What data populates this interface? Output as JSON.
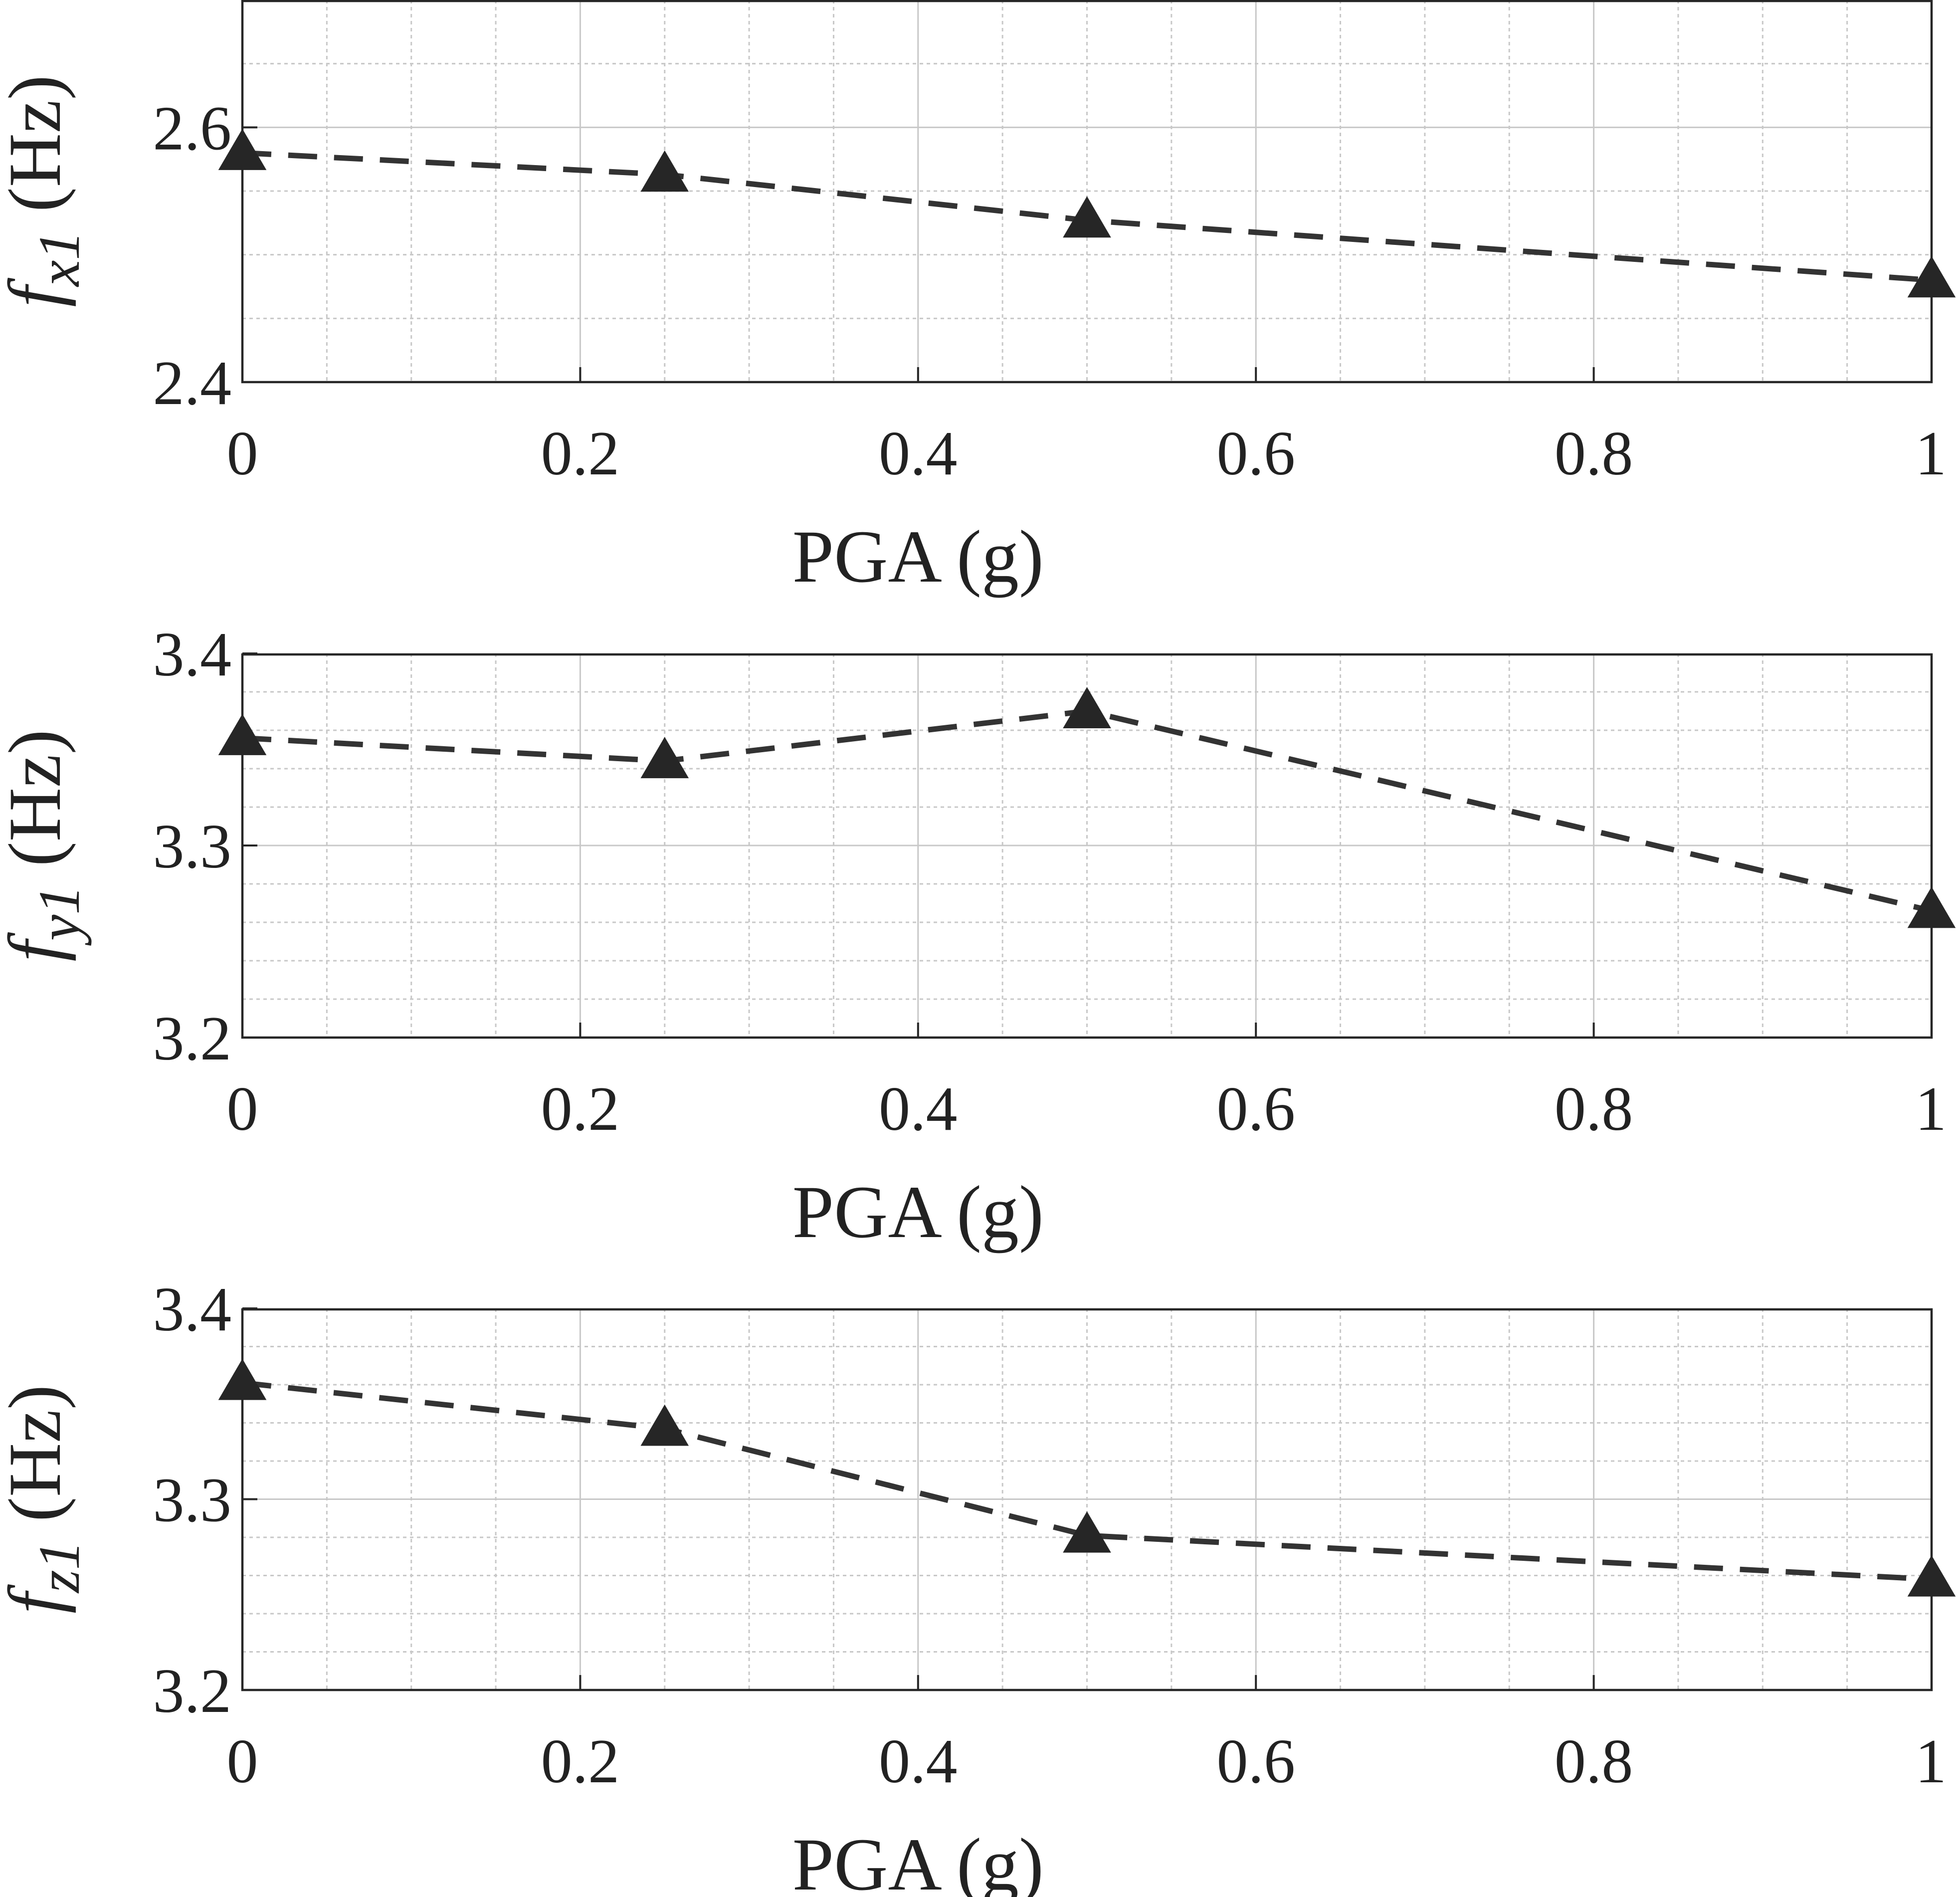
{
  "colors": {
    "series": "#333333",
    "marker": "#262626",
    "axes": "#262626",
    "grid": "#c8c8c8",
    "text": "#222222"
  },
  "chart_data": [
    {
      "type": "line",
      "marker": "triangle",
      "line_style": "dashed",
      "x": [
        0,
        0.25,
        0.5,
        1
      ],
      "values": [
        2.58,
        2.563,
        2.527,
        2.48
      ],
      "xlabel": "PGA (g)",
      "ylabel": {
        "symbol": "f",
        "subscript": "x1",
        "unit": " (Hz)"
      },
      "xlim": [
        0,
        1
      ],
      "ylim": [
        2.4,
        2.7
      ],
      "xticks": [
        0,
        0.2,
        0.4,
        0.6,
        0.8,
        1
      ],
      "xtick_labels": [
        "0",
        "0.2",
        "0.4",
        "0.6",
        "0.8",
        "1"
      ],
      "yticks": [
        2.4,
        2.6
      ],
      "ytick_labels": [
        "2.4",
        "2.6"
      ],
      "y_minor_step": 0.05,
      "x_minor_step": 0.05,
      "grid": true
    },
    {
      "type": "line",
      "marker": "triangle",
      "line_style": "dashed",
      "x": [
        0,
        0.25,
        0.5,
        1
      ],
      "values": [
        3.356,
        3.344,
        3.37,
        3.266
      ],
      "xlabel": "PGA (g)",
      "ylabel": {
        "symbol": "f",
        "subscript": "y1",
        "unit": " (Hz)"
      },
      "xlim": [
        0,
        1
      ],
      "ylim": [
        3.2,
        3.4
      ],
      "xticks": [
        0,
        0.2,
        0.4,
        0.6,
        0.8,
        1
      ],
      "xtick_labels": [
        "0",
        "0.2",
        "0.4",
        "0.6",
        "0.8",
        "1"
      ],
      "yticks": [
        3.2,
        3.3,
        3.4
      ],
      "ytick_labels": [
        "3.2",
        "3.3",
        "3.4"
      ],
      "y_minor_step": 0.02,
      "x_minor_step": 0.05,
      "grid": true
    },
    {
      "type": "line",
      "marker": "triangle",
      "line_style": "dashed",
      "x": [
        0,
        0.25,
        0.5,
        1
      ],
      "values": [
        3.361,
        3.337,
        3.281,
        3.258
      ],
      "xlabel": "PGA (g)",
      "ylabel": {
        "symbol": "f",
        "subscript": "z1",
        "unit": " (Hz)"
      },
      "xlim": [
        0,
        1
      ],
      "ylim": [
        3.2,
        3.4
      ],
      "xticks": [
        0,
        0.2,
        0.4,
        0.6,
        0.8,
        1
      ],
      "xtick_labels": [
        "0",
        "0.2",
        "0.4",
        "0.6",
        "0.8",
        "1"
      ],
      "yticks": [
        3.2,
        3.3,
        3.4
      ],
      "ytick_labels": [
        "3.2",
        "3.3",
        "3.4"
      ],
      "y_minor_step": 0.02,
      "x_minor_step": 0.05,
      "grid": true
    }
  ]
}
